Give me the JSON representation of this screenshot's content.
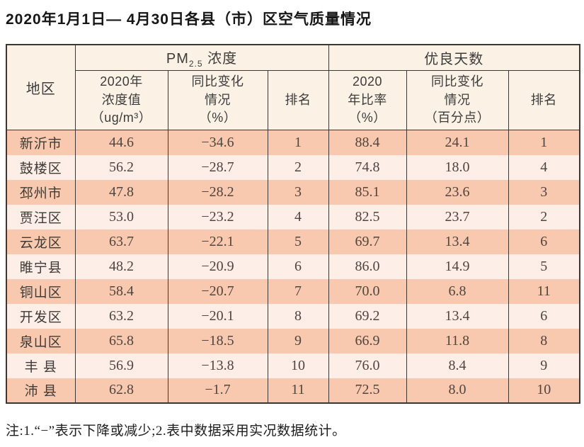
{
  "page": {
    "title": "2020年1月1日— 4月30日各县（市）区空气质量情况",
    "note": "注:1.“−”表示下降或减少;2.表中数据采用实况数据统计。"
  },
  "colors": {
    "stripe_odd": "#f8c9ae",
    "stripe_even": "#fdeee7",
    "header_bg": "#fbf2e5",
    "border": "#3c3733"
  },
  "table": {
    "header": {
      "region": "地区",
      "pm25_group": {
        "prefix": "PM",
        "sub": "2.5",
        "suffix": " 浓度"
      },
      "good_days_group": "优良天数",
      "sub": [
        "2020年\n浓度值\n（ug/m³）",
        "同比变化\n情况\n（%）",
        "排名",
        "2020\n年比率\n（%）",
        "同比变化\n情况\n（百分点）",
        "排名"
      ]
    },
    "rows": [
      [
        "新沂市",
        "44.6",
        "−34.6",
        "1",
        "88.4",
        "24.1",
        "1"
      ],
      [
        "鼓楼区",
        "56.2",
        "−28.7",
        "2",
        "74.8",
        "18.0",
        "4"
      ],
      [
        "邳州市",
        "47.8",
        "−28.2",
        "3",
        "85.1",
        "23.6",
        "3"
      ],
      [
        "贾汪区",
        "53.0",
        "−23.2",
        "4",
        "82.5",
        "23.7",
        "2"
      ],
      [
        "云龙区",
        "63.7",
        "−22.1",
        "5",
        "69.7",
        "13.4",
        "6"
      ],
      [
        "睢宁县",
        "48.2",
        "−20.9",
        "6",
        "86.0",
        "14.9",
        "5"
      ],
      [
        "铜山区",
        "58.4",
        "−20.7",
        "7",
        "70.0",
        "6.8",
        "11"
      ],
      [
        "开发区",
        "63.2",
        "−20.1",
        "8",
        "69.2",
        "13.4",
        "6"
      ],
      [
        "泉山区",
        "65.8",
        "−18.5",
        "9",
        "66.9",
        "11.8",
        "8"
      ],
      [
        "丰 县",
        "56.9",
        "−13.8",
        "10",
        "76.0",
        "8.4",
        "9"
      ],
      [
        "沛 县",
        "62.8",
        "−1.7",
        "11",
        "72.5",
        "8.0",
        "10"
      ]
    ]
  }
}
